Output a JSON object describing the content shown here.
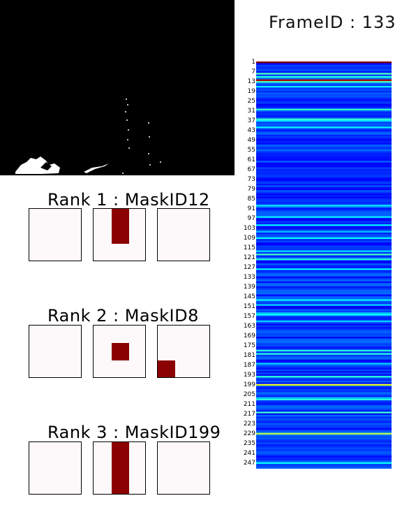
{
  "frame": {
    "label": "FrameID : 133"
  },
  "ranks": [
    {
      "title": "Rank 1 : MaskID12"
    },
    {
      "title": "Rank 2 : MaskID8"
    },
    {
      "title": "Rank 3 : MaskID199"
    }
  ],
  "chart_data": {
    "type": "heatmap",
    "title": "",
    "rows": 250,
    "row_tick_labels": [
      "1",
      "7",
      "13",
      "19",
      "25",
      "31",
      "37",
      "43",
      "49",
      "55",
      "61",
      "67",
      "73",
      "79",
      "85",
      "91",
      "97",
      "103",
      "109",
      "115",
      "121",
      "127",
      "133",
      "139",
      "145",
      "151",
      "157",
      "163",
      "169",
      "175",
      "181",
      "187",
      "193",
      "199",
      "205",
      "211",
      "217",
      "223",
      "229",
      "235",
      "241",
      "247"
    ],
    "colormap": "jet",
    "value_range": [
      0,
      1
    ],
    "highlights": [
      {
        "row": 1,
        "value": 1.0
      },
      {
        "row": 12,
        "value": 0.95
      },
      {
        "row": 199,
        "value": 0.6
      },
      {
        "row": 8,
        "value": 0.45
      },
      {
        "row": 229,
        "value": 0.55
      }
    ]
  }
}
